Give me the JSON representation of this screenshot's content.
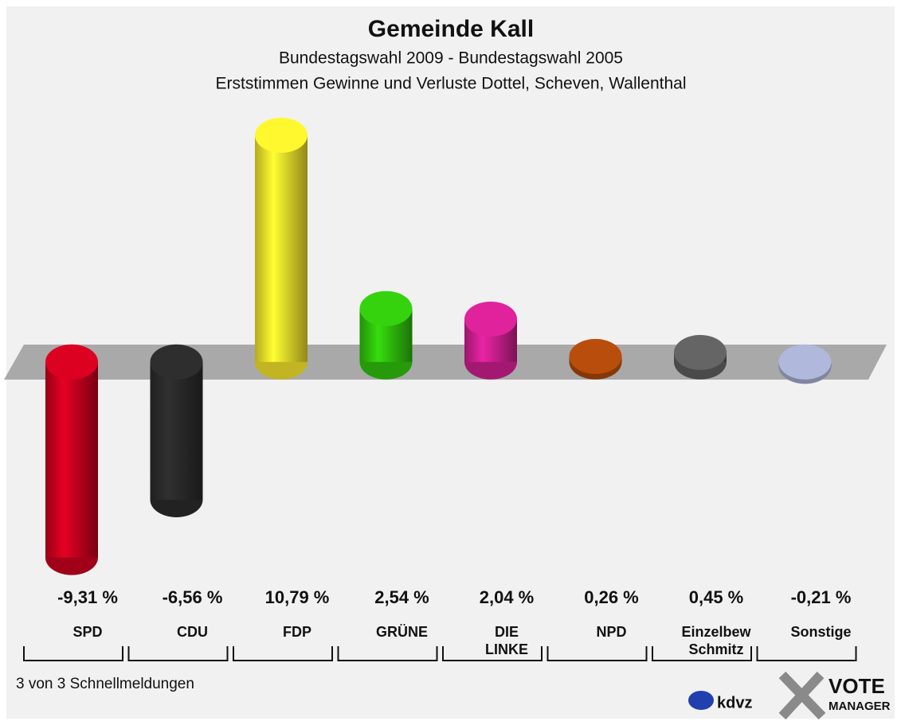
{
  "chart_data": {
    "type": "bar",
    "title": "Gemeinde Kall",
    "subtitle": "Bundestagswahl 2009 - Bundestagswahl 2005",
    "subtitle2": "Erststimmen Gewinne und Verluste Dottel, Scheven, Wallenthal",
    "categories": [
      "SPD",
      "CDU",
      "FDP",
      "GRÜNE",
      "DIE\nLINKE",
      "NPD",
      "Einzelbew\nSchmitz",
      "Sonstige"
    ],
    "values": [
      -9.31,
      -6.56,
      10.79,
      2.54,
      2.04,
      0.26,
      0.45,
      -0.21
    ],
    "value_labels": [
      "-9,31 %",
      "-6,56 %",
      "10,79 %",
      "2,54 %",
      "2,04 %",
      "0,26 %",
      "0,45 %",
      "-0,21 %"
    ],
    "colors": [
      "#c8001e",
      "#2a2a2a",
      "#f3e12b",
      "#2fc00c",
      "#cc1f8f",
      "#a8460a",
      "#5c5c5c",
      "#a0a8c8"
    ],
    "ylim": [
      -10.5,
      12
    ],
    "footer": "3 von 3 Schnellmeldungen",
    "logos": [
      "kdvz",
      "VOTE",
      "MANAGER"
    ]
  }
}
